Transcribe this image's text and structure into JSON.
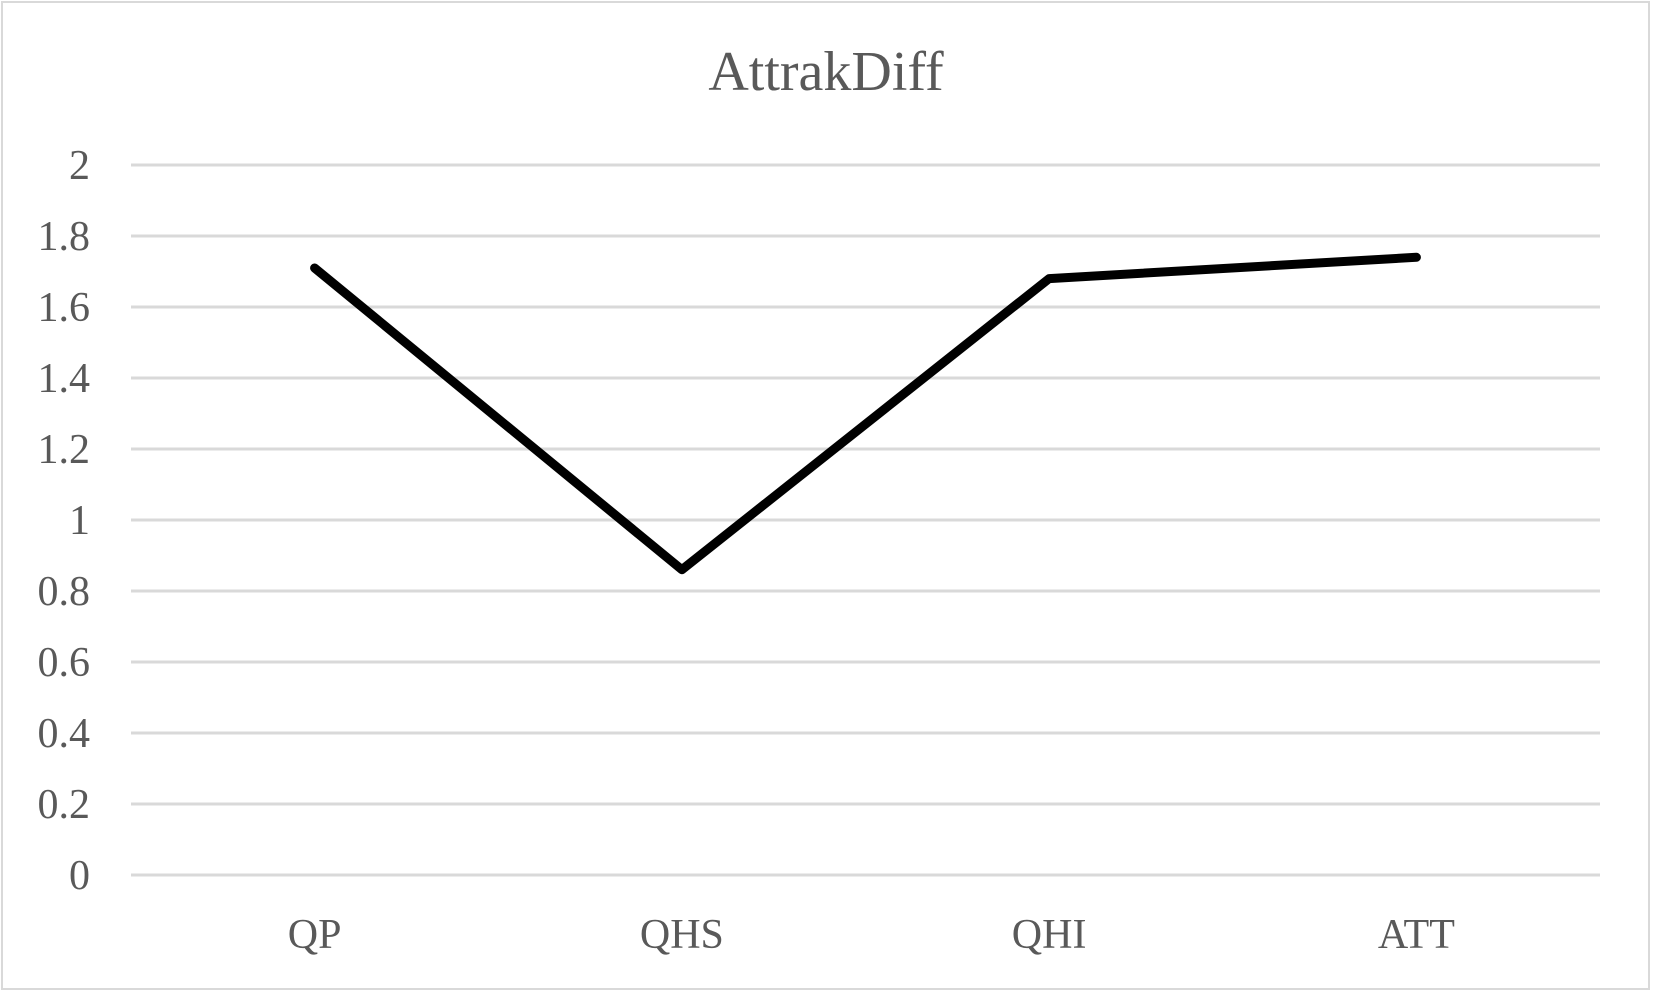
{
  "chart_data": {
    "type": "line",
    "title": "AttrakDiff",
    "xlabel": "",
    "ylabel": "",
    "categories": [
      "QP",
      "QHS",
      "QHI",
      "ATT"
    ],
    "series": [
      {
        "values": [
          1.71,
          0.86,
          1.68,
          1.74
        ],
        "color": "#000000"
      }
    ],
    "ylim": [
      0,
      2
    ],
    "yticks": [
      "0",
      "0.2",
      "0.4",
      "0.6",
      "0.8",
      "1",
      "1.2",
      "1.4",
      "1.6",
      "1.8",
      "2"
    ],
    "grid": true,
    "legend": "none"
  }
}
